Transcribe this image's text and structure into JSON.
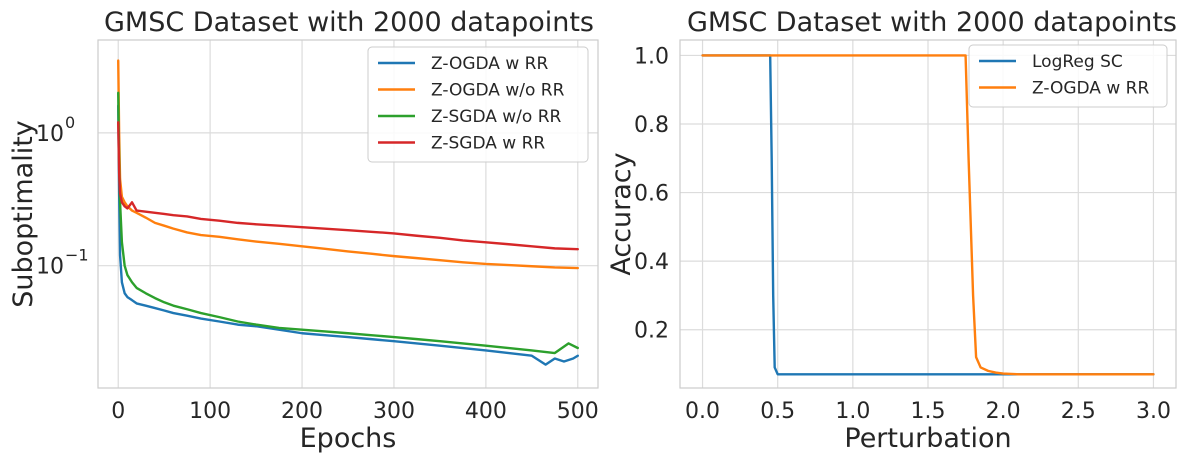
{
  "chart_data": [
    {
      "type": "line",
      "title": "GMSC Dataset with 2000 datapoints",
      "xlabel": "Epochs",
      "ylabel": "Suboptimality",
      "yscale": "log",
      "xlim": [
        -22,
        522
      ],
      "ylim": [
        0.012,
        5.0
      ],
      "xticks": [
        0,
        100,
        200,
        300,
        400,
        500
      ],
      "xtick_labels": [
        "0",
        "100",
        "200",
        "300",
        "400",
        "500"
      ],
      "yticks": [
        1,
        0.1
      ],
      "ytick_labels": [
        {
          "base": "10",
          "exp": "0"
        },
        {
          "base": "10",
          "exp": "−1"
        }
      ],
      "grid": true,
      "legend_position": "top-right",
      "series": [
        {
          "name": "Z-OGDA w RR",
          "color": "#1f77b4",
          "x": [
            0,
            1,
            2,
            4,
            7,
            10,
            15,
            20,
            30,
            40,
            50,
            60,
            75,
            90,
            110,
            130,
            150,
            175,
            200,
            225,
            250,
            275,
            300,
            325,
            350,
            375,
            400,
            425,
            450,
            465,
            475,
            485,
            495,
            500
          ],
          "y": [
            1.6,
            0.35,
            0.12,
            0.075,
            0.062,
            0.058,
            0.055,
            0.052,
            0.05,
            0.048,
            0.046,
            0.044,
            0.042,
            0.04,
            0.038,
            0.036,
            0.035,
            0.033,
            0.031,
            0.03,
            0.029,
            0.028,
            0.027,
            0.026,
            0.025,
            0.024,
            0.023,
            0.022,
            0.021,
            0.018,
            0.02,
            0.019,
            0.02,
            0.021
          ]
        },
        {
          "name": "Z-OGDA w/o RR",
          "color": "#ff7f0e",
          "x": [
            0,
            1,
            2,
            4,
            7,
            10,
            15,
            20,
            30,
            40,
            50,
            60,
            75,
            90,
            110,
            130,
            150,
            175,
            200,
            225,
            250,
            275,
            300,
            325,
            350,
            375,
            400,
            425,
            450,
            475,
            500
          ],
          "y": [
            3.5,
            1.0,
            0.45,
            0.33,
            0.3,
            0.28,
            0.26,
            0.25,
            0.23,
            0.21,
            0.2,
            0.19,
            0.178,
            0.17,
            0.165,
            0.158,
            0.152,
            0.146,
            0.14,
            0.134,
            0.128,
            0.123,
            0.118,
            0.114,
            0.11,
            0.106,
            0.103,
            0.101,
            0.099,
            0.097,
            0.096
          ]
        },
        {
          "name": "Z-SGDA w/o RR",
          "color": "#2ca02c",
          "x": [
            0,
            1,
            2,
            4,
            7,
            10,
            15,
            20,
            30,
            40,
            50,
            60,
            75,
            90,
            110,
            130,
            150,
            175,
            200,
            225,
            250,
            275,
            300,
            325,
            350,
            375,
            400,
            425,
            450,
            475,
            490,
            500
          ],
          "y": [
            2.0,
            0.6,
            0.3,
            0.15,
            0.1,
            0.085,
            0.075,
            0.068,
            0.062,
            0.057,
            0.053,
            0.05,
            0.047,
            0.044,
            0.041,
            0.038,
            0.036,
            0.034,
            0.033,
            0.032,
            0.031,
            0.03,
            0.029,
            0.028,
            0.027,
            0.026,
            0.025,
            0.024,
            0.023,
            0.022,
            0.026,
            0.024
          ]
        },
        {
          "name": "Z-SGDA w RR",
          "color": "#d62728",
          "x": [
            0,
            1,
            2,
            4,
            7,
            10,
            15,
            20,
            30,
            40,
            50,
            60,
            75,
            90,
            110,
            130,
            150,
            175,
            200,
            225,
            250,
            275,
            300,
            325,
            350,
            375,
            400,
            425,
            450,
            475,
            500
          ],
          "y": [
            1.2,
            0.5,
            0.35,
            0.3,
            0.28,
            0.27,
            0.3,
            0.26,
            0.255,
            0.25,
            0.245,
            0.24,
            0.235,
            0.225,
            0.218,
            0.21,
            0.205,
            0.2,
            0.195,
            0.19,
            0.185,
            0.18,
            0.175,
            0.168,
            0.162,
            0.155,
            0.15,
            0.145,
            0.14,
            0.135,
            0.133
          ]
        }
      ]
    },
    {
      "type": "line",
      "title": "GMSC Dataset with 2000 datapoints",
      "xlabel": "Perturbation",
      "ylabel": "Accuracy",
      "yscale": "linear",
      "xlim": [
        -0.15,
        3.15
      ],
      "ylim": [
        0.03,
        1.045
      ],
      "xticks": [
        0.0,
        0.5,
        1.0,
        1.5,
        2.0,
        2.5,
        3.0
      ],
      "xtick_labels": [
        "0.0",
        "0.5",
        "1.0",
        "1.5",
        "2.0",
        "2.5",
        "3.0"
      ],
      "yticks": [
        0.2,
        0.4,
        0.6,
        0.8,
        1.0
      ],
      "ytick_labels": [
        "0.2",
        "0.4",
        "0.6",
        "0.8",
        "1.0"
      ],
      "grid": true,
      "legend_position": "top-right",
      "series": [
        {
          "name": "LogReg SC",
          "color": "#1f77b4",
          "x": [
            0.0,
            0.45,
            0.46,
            0.47,
            0.48,
            0.5,
            1.0,
            1.5,
            2.0,
            2.5,
            3.0
          ],
          "y": [
            1.0,
            1.0,
            0.7,
            0.3,
            0.09,
            0.07,
            0.07,
            0.07,
            0.07,
            0.07,
            0.07
          ]
        },
        {
          "name": "Z-OGDA w RR",
          "color": "#ff7f0e",
          "x": [
            0.0,
            1.0,
            1.75,
            1.77,
            1.8,
            1.82,
            1.85,
            1.9,
            1.95,
            2.0,
            2.1,
            2.5,
            3.0
          ],
          "y": [
            1.0,
            1.0,
            1.0,
            0.7,
            0.3,
            0.12,
            0.09,
            0.08,
            0.075,
            0.072,
            0.07,
            0.07,
            0.07
          ]
        }
      ]
    }
  ]
}
